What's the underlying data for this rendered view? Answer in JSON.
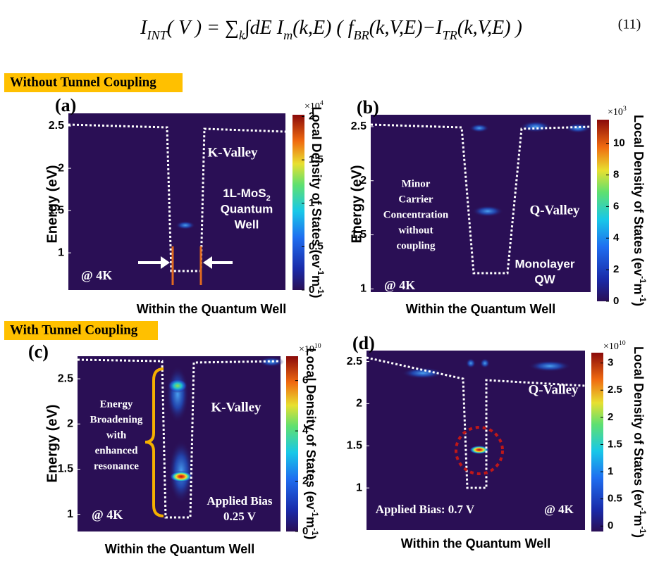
{
  "equation": {
    "parts": [
      {
        "text": "I"
      },
      {
        "text": "INT",
        "sub": true
      },
      {
        "text": "( V ) = ∑"
      },
      {
        "text": "k",
        "sub": true
      },
      {
        "text": "∫dE  I"
      },
      {
        "text": "m",
        "sub": true
      },
      {
        "text": "(k,E) ( f"
      },
      {
        "text": "BR",
        "sub": true
      },
      {
        "text": "(k,V,E)−I"
      },
      {
        "text": "TR",
        "sub": true
      },
      {
        "text": "(k,V,E) )"
      }
    ],
    "number": "(11)"
  },
  "sections": [
    {
      "title": "Without Tunnel Coupling"
    },
    {
      "title": "With Tunnel Coupling"
    }
  ],
  "colorbar_label": [
    {
      "text": "Local Density of States (ev"
    },
    {
      "text": "-1",
      "sup": true
    },
    {
      "text": "m"
    },
    {
      "text": "-1",
      "sup": true
    },
    {
      "text": ")"
    }
  ],
  "panels": [
    {
      "label": "(a)",
      "y_label": "Energy (eV)",
      "x_label": "Within the Quantum Well",
      "ylim": [
        0.56,
        2.65
      ],
      "yticks": [
        2.5,
        2,
        1.5,
        1
      ],
      "colorbar": {
        "range": [
          0,
          2.02
        ],
        "ticks": [
          2,
          1.5,
          1,
          0.5,
          0
        ],
        "multiplier": {
          "base": "×10",
          "exponent": "4"
        }
      },
      "annotations": [
        {
          "lines": [
            "K-Valley"
          ]
        },
        {
          "lines": [
            [
              {
                "text": "1L-MoS"
              },
              {
                "text": "2",
                "sub": true
              }
            ],
            "Quantum",
            "Well"
          ]
        },
        {
          "lines": [
            "@ 4K"
          ]
        }
      ]
    },
    {
      "label": "(b)",
      "y_label": "Energy (eV)",
      "x_label": "Within the Quantum Well",
      "ylim": [
        0.97,
        2.61
      ],
      "yticks": [
        2.5,
        2,
        1.5,
        1
      ],
      "colorbar": {
        "range": [
          0,
          11.5
        ],
        "ticks": [
          10,
          8,
          6,
          4,
          2,
          0
        ],
        "multiplier": {
          "base": "×10",
          "exponent": "3"
        }
      },
      "annotations": [
        {
          "lines": [
            "Minor",
            "Carrier",
            "Concentration",
            "without",
            "coupling"
          ]
        },
        {
          "lines": [
            "Q-Valley"
          ]
        },
        {
          "lines": [
            "Monolayer",
            "QW"
          ]
        },
        {
          "lines": [
            "@ 4K"
          ]
        }
      ]
    },
    {
      "label": "(c)",
      "y_label": "Energy (eV)",
      "x_label": "Within the Quantum Well",
      "ylim": [
        0.81,
        2.75
      ],
      "yticks": [
        2.5,
        2,
        1.5,
        1
      ],
      "colorbar": {
        "range": [
          0,
          6.97
        ],
        "ticks": [
          6,
          4,
          2,
          0
        ],
        "multiplier": {
          "base": "×10",
          "exponent": "10"
        }
      },
      "annotations": [
        {
          "lines": [
            "Energy",
            "Broadening",
            "with",
            "enhanced",
            "resonance"
          ]
        },
        {
          "lines": [
            "K-Valley"
          ]
        },
        {
          "lines": [
            "Applied Bias",
            "0.25 V"
          ]
        },
        {
          "lines": [
            "@ 4K"
          ]
        }
      ]
    },
    {
      "label": "(d)",
      "x_label": "Within the Quantum Well",
      "ylim": [
        0.5,
        2.63
      ],
      "yticks": [
        2.5,
        2,
        1.5,
        1
      ],
      "colorbar": {
        "range": [
          -0.1,
          3.19
        ],
        "ticks": [
          3,
          2.5,
          2,
          1.5,
          1,
          0.5,
          0
        ],
        "multiplier": {
          "base": "×10",
          "exponent": "10"
        }
      },
      "annotations": [
        {
          "lines": [
            "Q-Valley"
          ]
        },
        {
          "lines": [
            "Applied Bias: 0.7 V"
          ]
        },
        {
          "lines": [
            "@ 4K"
          ]
        }
      ]
    }
  ]
}
